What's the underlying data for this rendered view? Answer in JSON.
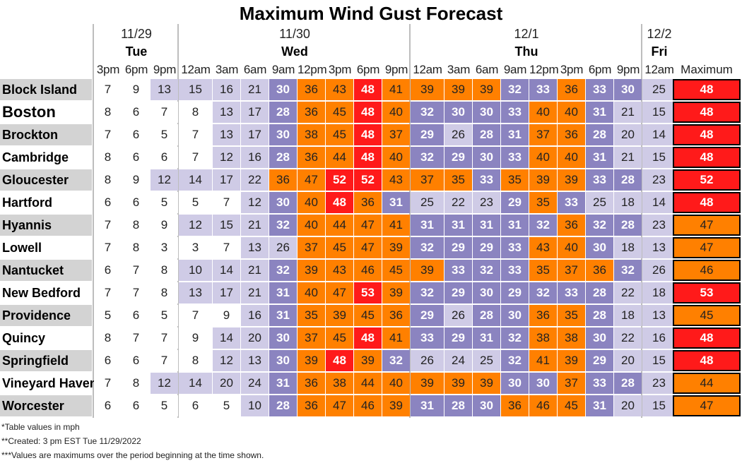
{
  "title": "Maximum Wind Gust Forecast",
  "days": [
    {
      "date": "11/29",
      "day": "Tue",
      "start": 0,
      "count": 3
    },
    {
      "date": "11/30",
      "day": "Wed",
      "start": 3,
      "count": 8
    },
    {
      "date": "12/1",
      "day": "Thu",
      "start": 11,
      "count": 8
    },
    {
      "date": "12/2",
      "day": "Fri",
      "start": 19,
      "count": 1
    }
  ],
  "times": [
    "3pm",
    "6pm",
    "9pm",
    "12am",
    "3am",
    "6am",
    "9am",
    "12pm",
    "3pm",
    "6pm",
    "9pm",
    "12am",
    "3am",
    "6am",
    "9am",
    "12pm",
    "3pm",
    "6pm",
    "9pm",
    "12am"
  ],
  "max_label": "Maximum",
  "colors": {
    "white": "#ffffff",
    "light_lavender": "#cfcbe6",
    "purple": "#8b84c0",
    "orange": "#ff8000",
    "red": "#ff1a1a",
    "city_bg": "#d3d3d3"
  },
  "chart_data": {
    "type": "table",
    "title": "Maximum Wind Gust Forecast",
    "columns": [
      "11/29 Tue 3pm",
      "11/29 Tue 6pm",
      "11/29 Tue 9pm",
      "11/30 Wed 12am",
      "11/30 Wed 3am",
      "11/30 Wed 6am",
      "11/30 Wed 9am",
      "11/30 Wed 12pm",
      "11/30 Wed 3pm",
      "11/30 Wed 6pm",
      "11/30 Wed 9pm",
      "12/1 Thu 12am",
      "12/1 Thu 3am",
      "12/1 Thu 6am",
      "12/1 Thu 9am",
      "12/1 Thu 12pm",
      "12/1 Thu 3pm",
      "12/1 Thu 6pm",
      "12/1 Thu 9pm",
      "12/2 Fri 12am"
    ],
    "rows": [
      {
        "city": "Block Island",
        "values": [
          7,
          9,
          13,
          15,
          16,
          21,
          30,
          36,
          43,
          48,
          41,
          39,
          39,
          39,
          32,
          33,
          36,
          33,
          30,
          25
        ],
        "max": 48
      },
      {
        "city": "Boston",
        "values": [
          8,
          6,
          7,
          8,
          13,
          17,
          28,
          36,
          45,
          48,
          40,
          32,
          30,
          30,
          33,
          40,
          40,
          31,
          21,
          15
        ],
        "max": 48
      },
      {
        "city": "Brockton",
        "values": [
          7,
          6,
          5,
          7,
          13,
          17,
          30,
          38,
          45,
          48,
          37,
          29,
          26,
          28,
          31,
          37,
          36,
          28,
          20,
          14
        ],
        "max": 48
      },
      {
        "city": "Cambridge",
        "values": [
          8,
          6,
          6,
          7,
          12,
          16,
          28,
          36,
          44,
          48,
          40,
          32,
          29,
          30,
          33,
          40,
          40,
          31,
          21,
          15
        ],
        "max": 48
      },
      {
        "city": "Gloucester",
        "values": [
          8,
          9,
          12,
          14,
          17,
          22,
          36,
          47,
          52,
          52,
          43,
          37,
          35,
          33,
          35,
          39,
          39,
          33,
          28,
          23
        ],
        "max": 52
      },
      {
        "city": "Hartford",
        "values": [
          6,
          6,
          5,
          5,
          7,
          12,
          30,
          40,
          48,
          36,
          31,
          25,
          22,
          23,
          29,
          35,
          33,
          25,
          18,
          14
        ],
        "max": 48
      },
      {
        "city": "Hyannis",
        "values": [
          7,
          8,
          9,
          12,
          15,
          21,
          32,
          40,
          44,
          47,
          41,
          31,
          31,
          31,
          31,
          32,
          36,
          32,
          28,
          23
        ],
        "max": 47
      },
      {
        "city": "Lowell",
        "values": [
          7,
          8,
          3,
          3,
          7,
          13,
          26,
          37,
          45,
          47,
          39,
          32,
          29,
          29,
          33,
          43,
          40,
          30,
          18,
          13
        ],
        "max": 47
      },
      {
        "city": "Nantucket",
        "values": [
          6,
          7,
          8,
          10,
          14,
          21,
          32,
          39,
          43,
          46,
          45,
          39,
          33,
          32,
          33,
          35,
          37,
          36,
          32,
          26
        ],
        "max": 46
      },
      {
        "city": "New Bedford",
        "values": [
          7,
          7,
          8,
          13,
          17,
          21,
          31,
          40,
          47,
          53,
          39,
          32,
          29,
          30,
          29,
          32,
          33,
          28,
          22,
          18
        ],
        "max": 53
      },
      {
        "city": "Providence",
        "values": [
          5,
          6,
          5,
          7,
          9,
          16,
          31,
          35,
          39,
          45,
          36,
          29,
          26,
          28,
          30,
          36,
          35,
          28,
          18,
          13
        ],
        "max": 45
      },
      {
        "city": "Quincy",
        "values": [
          8,
          7,
          7,
          9,
          14,
          20,
          30,
          37,
          45,
          48,
          41,
          33,
          29,
          31,
          32,
          38,
          38,
          30,
          22,
          16
        ],
        "max": 48
      },
      {
        "city": "Springfield",
        "values": [
          6,
          6,
          7,
          8,
          12,
          13,
          30,
          39,
          48,
          39,
          32,
          26,
          24,
          25,
          32,
          41,
          39,
          29,
          20,
          15
        ],
        "max": 48
      },
      {
        "city": "Vineyard Haven",
        "values": [
          7,
          8,
          12,
          14,
          20,
          24,
          31,
          36,
          38,
          44,
          40,
          39,
          39,
          39,
          30,
          30,
          37,
          33,
          28,
          23
        ],
        "max": 44
      },
      {
        "city": "Worcester",
        "values": [
          6,
          6,
          5,
          6,
          5,
          10,
          28,
          36,
          47,
          46,
          39,
          31,
          28,
          30,
          36,
          46,
          45,
          31,
          20,
          15
        ],
        "max": 47
      }
    ]
  },
  "footnotes": [
    "*Table values in mph",
    "**Created: 3 pm EST Tue 11/29/2022",
    "***Values are maximums over the period beginning at the time shown."
  ]
}
